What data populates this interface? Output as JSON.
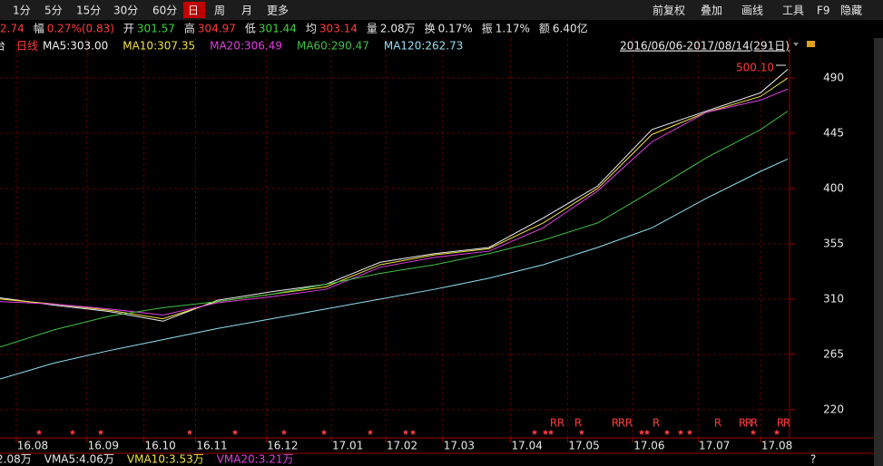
{
  "toolbar": {
    "periods": [
      "1分",
      "5分",
      "15分",
      "30分",
      "60分",
      "日",
      "周",
      "月",
      "更多"
    ],
    "active_period": "日",
    "tools": [
      "前复权",
      "叠加",
      "画线",
      "工具",
      "F9",
      "隐藏"
    ]
  },
  "quote": [
    {
      "label": "",
      "value": "2.74",
      "color": "#ff3b3b"
    },
    {
      "label": "幅",
      "value": "0.27%(0.83)",
      "color": "#ff3b3b"
    },
    {
      "label": "开",
      "value": "301.57",
      "color": "#3bd23b"
    },
    {
      "label": "高",
      "value": "304.97",
      "color": "#ff3b3b"
    },
    {
      "label": "低",
      "value": "301.44",
      "color": "#3bd23b"
    },
    {
      "label": "均",
      "value": "303.14",
      "color": "#ff3b3b"
    },
    {
      "label": "量",
      "value": "2.08万",
      "color": "#e8e8e8"
    },
    {
      "label": "换",
      "value": "0.17%",
      "color": "#e8e8e8"
    },
    {
      "label": "振",
      "value": "1.17%",
      "color": "#e8e8e8"
    },
    {
      "label": "额",
      "value": "6.40亿",
      "color": "#e8e8e8"
    }
  ],
  "chart_data": {
    "type": "line",
    "left_label": "台",
    "period_label": "日线",
    "range_label": "2016/06/06-2017/08/14(291日)",
    "max_label": "500.10",
    "x": [
      0,
      20,
      40,
      60,
      80,
      100,
      120,
      140,
      160,
      180,
      200,
      220,
      240,
      260,
      280,
      290
    ],
    "xlim": [
      0,
      290
    ],
    "ylim": [
      197,
      522.5
    ],
    "yticks": [
      220,
      265,
      310,
      355,
      400,
      445,
      490
    ],
    "xticks": [
      {
        "value": 6,
        "label": "16.08"
      },
      {
        "value": 32,
        "label": "16.09"
      },
      {
        "value": 53,
        "label": "16.10"
      },
      {
        "value": 72,
        "label": "16.11"
      },
      {
        "value": 98,
        "label": "16.12"
      },
      {
        "value": 122,
        "label": "17.01"
      },
      {
        "value": 142,
        "label": "17.02"
      },
      {
        "value": 163,
        "label": "17.03"
      },
      {
        "value": 188,
        "label": "17.04"
      },
      {
        "value": 209,
        "label": "17.05"
      },
      {
        "value": 233,
        "label": "17.06"
      },
      {
        "value": 257,
        "label": "17.07"
      },
      {
        "value": 280,
        "label": "17.08"
      }
    ],
    "series": [
      {
        "name": "MA5:303.00",
        "color": "#f0f0f0",
        "values": [
          311,
          305,
          300,
          292,
          309,
          316,
          322,
          340,
          347,
          352,
          376,
          402,
          448,
          463,
          478,
          497
        ]
      },
      {
        "name": "MA10:307.35",
        "color": "#f0e040",
        "values": [
          310,
          306,
          301,
          294,
          308,
          314,
          320,
          338,
          346,
          351,
          372,
          400,
          444,
          462,
          475,
          490
        ]
      },
      {
        "name": "MA20:306.49",
        "color": "#e040e0",
        "values": [
          308,
          306,
          302,
          297,
          307,
          312,
          318,
          336,
          344,
          349,
          368,
          398,
          438,
          462,
          472,
          481
        ]
      },
      {
        "name": "MA60:290.47",
        "color": "#40c040",
        "values": [
          271,
          285,
          296,
          303,
          308,
          314,
          322,
          331,
          338,
          347,
          358,
          372,
          398,
          425,
          448,
          463
        ]
      },
      {
        "name": "MA120:262.73",
        "color": "#8fe0f0",
        "values": [
          245,
          258,
          268,
          277,
          286,
          294,
          302,
          310,
          318,
          327,
          338,
          352,
          368,
          392,
          414,
          424
        ]
      }
    ],
    "event_markers": [
      "R",
      "R",
      "R",
      "R",
      "R",
      "R",
      "R",
      "R",
      "R",
      "R",
      "R",
      "R",
      "R"
    ]
  },
  "volume_legend": [
    {
      "text": "2.08万",
      "color": "#e8e8e8"
    },
    {
      "text": "VMA5:4.06万",
      "color": "#e8e8e8"
    },
    {
      "text": "VMA10:3.53万",
      "color": "#f0e040"
    },
    {
      "text": "VMA20:3.21万",
      "color": "#e040e0"
    }
  ],
  "help": "?"
}
